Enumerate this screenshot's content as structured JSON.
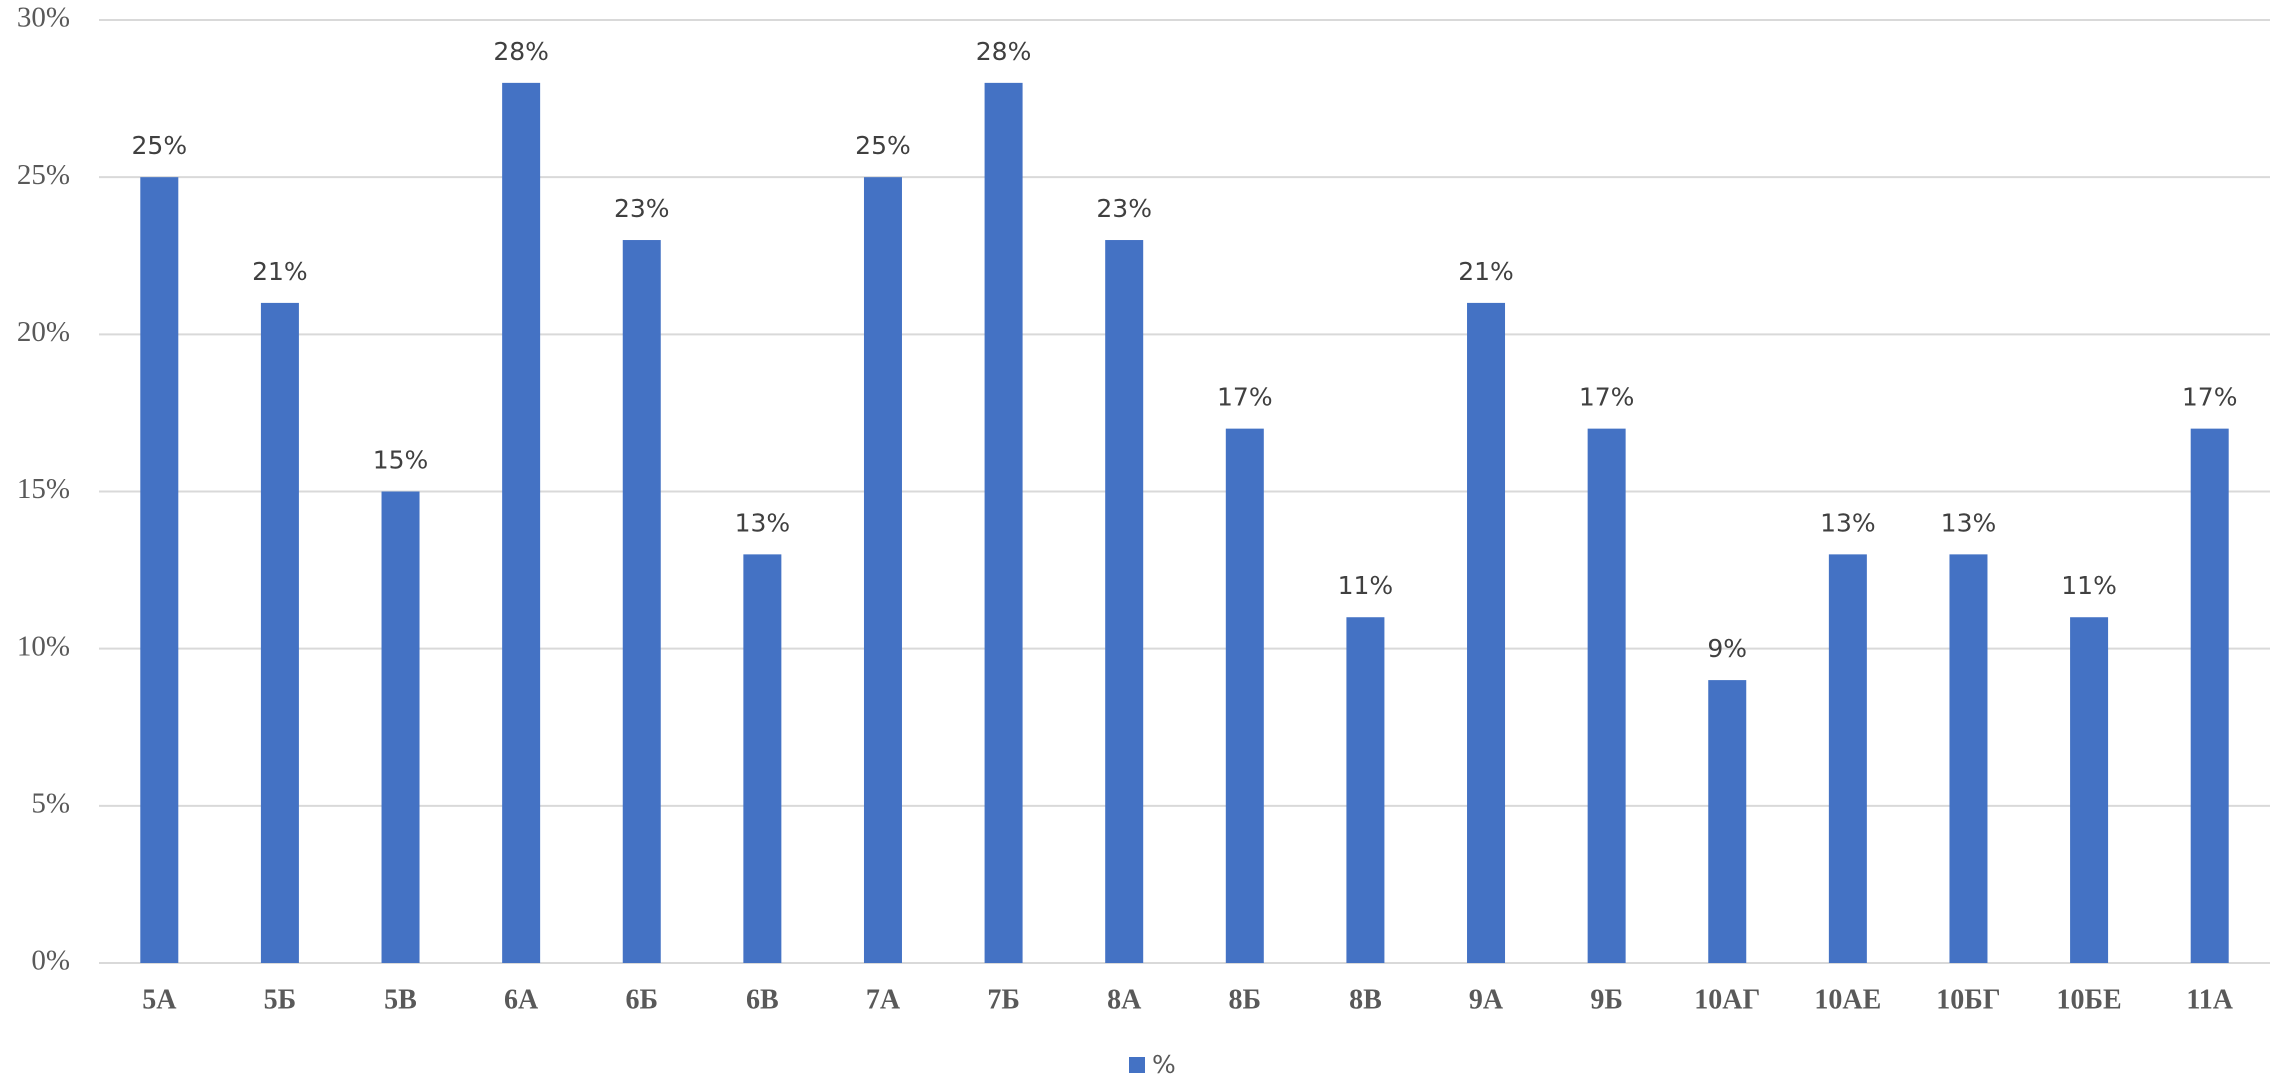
{
  "chart_data": {
    "type": "bar",
    "categories": [
      "5А",
      "5Б",
      "5В",
      "6А",
      "6Б",
      "6В",
      "7А",
      "7Б",
      "8А",
      "8Б",
      "8В",
      "9А",
      "9Б",
      "10АГ",
      "10АЕ",
      "10БГ",
      "10БЕ",
      "11А"
    ],
    "series": [
      {
        "name": "%",
        "color": "#4472c4",
        "values": [
          25,
          21,
          15,
          28,
          23,
          13,
          25,
          28,
          23,
          17,
          11,
          21,
          17,
          9,
          13,
          13,
          11,
          17
        ],
        "value_labels": [
          "25%",
          "21%",
          "15%",
          "28%",
          "23%",
          "13%",
          "25%",
          "28%",
          "23%",
          "17%",
          "11%",
          "21%",
          "17%",
          "9%",
          "13%",
          "13%",
          "11%",
          "17%"
        ]
      }
    ],
    "ylim": [
      0,
      30
    ],
    "yticks": [
      {
        "value": 0,
        "label": "0%"
      },
      {
        "value": 5,
        "label": "5%"
      },
      {
        "value": 10,
        "label": "10%"
      },
      {
        "value": 15,
        "label": "15%"
      },
      {
        "value": 20,
        "label": "20%"
      },
      {
        "value": 25,
        "label": "25%"
      },
      {
        "value": 30,
        "label": "30%"
      }
    ],
    "grid": true,
    "legend": "bottom"
  }
}
